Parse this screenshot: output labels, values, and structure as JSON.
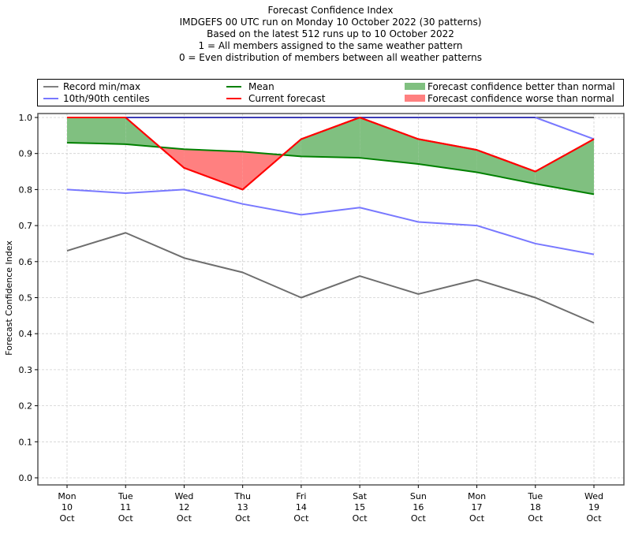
{
  "chart_data": {
    "type": "line",
    "title": [
      "Forecast Confidence Index",
      "IMDGEFS 00 UTC run on Monday 10 October 2022 (30 patterns)",
      "Based on the latest 512 runs up to 10 October 2022",
      "1 = All members assigned to the same weather pattern",
      "0 = Even distribution of members between all weather patterns"
    ],
    "xlabel": "",
    "ylabel": "Forecast Confidence Index",
    "ylim": [
      0.0,
      1.0
    ],
    "yticks": [
      "0.0",
      "0.1",
      "0.2",
      "0.3",
      "0.4",
      "0.5",
      "0.6",
      "0.7",
      "0.8",
      "0.9",
      "1.0"
    ],
    "grid": true,
    "legend_position": "top (above plot, 3 columns)",
    "categories": [
      [
        "Mon",
        "10",
        "Oct"
      ],
      [
        "Tue",
        "11",
        "Oct"
      ],
      [
        "Wed",
        "12",
        "Oct"
      ],
      [
        "Thu",
        "13",
        "Oct"
      ],
      [
        "Fri",
        "14",
        "Oct"
      ],
      [
        "Sat",
        "15",
        "Oct"
      ],
      [
        "Sun",
        "16",
        "Oct"
      ],
      [
        "Mon",
        "17",
        "Oct"
      ],
      [
        "Tue",
        "18",
        "Oct"
      ],
      [
        "Wed",
        "19",
        "Oct"
      ]
    ],
    "series": [
      {
        "name": "Record min",
        "legend_group": "Record min/max",
        "color": "#808080",
        "values": [
          0.63,
          0.68,
          0.61,
          0.57,
          0.5,
          0.56,
          0.51,
          0.55,
          0.5,
          0.43
        ]
      },
      {
        "name": "Record max",
        "legend_group": "Record min/max",
        "color": "#808080",
        "values": [
          1.0,
          1.0,
          1.0,
          1.0,
          1.0,
          1.0,
          1.0,
          1.0,
          1.0,
          1.0
        ]
      },
      {
        "name": "10th centile",
        "legend_group": "10th/90th centiles",
        "color": "#7878ff",
        "values": [
          0.8,
          0.79,
          0.8,
          0.76,
          0.73,
          0.75,
          0.71,
          0.7,
          0.65,
          0.62
        ]
      },
      {
        "name": "90th centile",
        "legend_group": "10th/90th centiles",
        "color": "#7878ff",
        "values": [
          1.0,
          1.0,
          1.0,
          1.0,
          1.0,
          1.0,
          1.0,
          1.0,
          1.0,
          0.94
        ]
      },
      {
        "name": "Mean",
        "color": "#008000",
        "values": [
          0.93,
          0.926,
          0.912,
          0.905,
          0.892,
          0.888,
          0.871,
          0.848,
          0.816,
          0.787
        ]
      },
      {
        "name": "Current forecast",
        "color": "#ff0000",
        "values": [
          1.0,
          1.0,
          0.86,
          0.8,
          0.94,
          1.0,
          0.94,
          0.91,
          0.85,
          0.94
        ]
      }
    ],
    "fills": [
      {
        "name": "Forecast confidence better than normal",
        "condition": "current > mean",
        "color": "#80c080"
      },
      {
        "name": "Forecast confidence worse than normal",
        "condition": "current < mean",
        "color": "#ff8080"
      }
    ],
    "legend": [
      {
        "label": "Record min/max",
        "kind": "line",
        "color": "#808080"
      },
      {
        "label": "10th/90th centiles",
        "kind": "line",
        "color": "#7878ff"
      },
      {
        "label": "Mean",
        "kind": "line",
        "color": "#008000"
      },
      {
        "label": "Current forecast",
        "kind": "line",
        "color": "#ff0000"
      },
      {
        "label": "Forecast confidence better than normal",
        "kind": "patch",
        "color": "#80c080"
      },
      {
        "label": "Forecast confidence worse than normal",
        "kind": "patch",
        "color": "#ff8080"
      }
    ]
  }
}
